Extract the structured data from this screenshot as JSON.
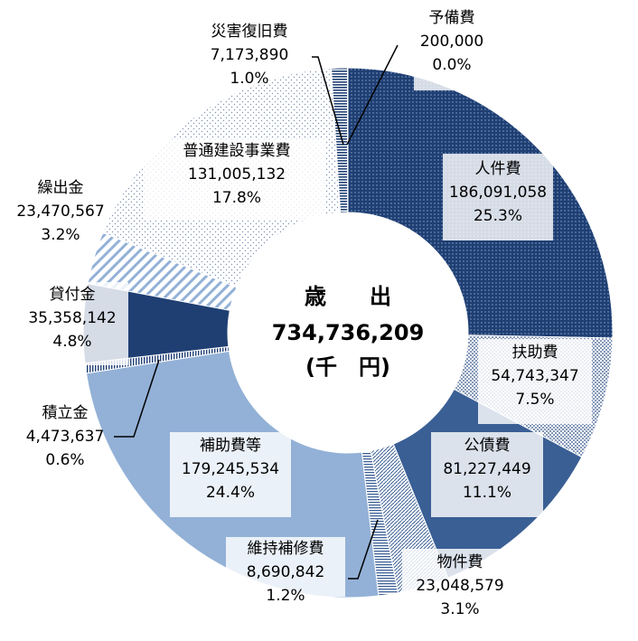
{
  "chart_data": {
    "type": "pie",
    "center": {
      "line1": "歳　　出",
      "line2": "734,736,209",
      "line3": "(千　円)"
    },
    "slices": [
      {
        "name": "人件費",
        "value": 186091058,
        "amount_label": "186,091,058",
        "percent_label": "25.3%",
        "color": "#1f3f73",
        "pattern": "dots-light"
      },
      {
        "name": "扶助費",
        "value": 54743347,
        "amount_label": "54,743,347",
        "percent_label": "7.5%",
        "color": "#ffffff",
        "pattern": "dots-dark"
      },
      {
        "name": "公債費",
        "value": 81227449,
        "amount_label": "81,227,449",
        "percent_label": "11.1%",
        "color": "#3a5f95",
        "pattern": "none"
      },
      {
        "name": "物件費",
        "value": 23048579,
        "amount_label": "23,048,579",
        "percent_label": "3.1%",
        "color": "#ffffff",
        "pattern": "diag-fine"
      },
      {
        "name": "維持補修費",
        "value": 8690842,
        "amount_label": "8,690,842",
        "percent_label": "1.2%",
        "color": "#ffffff",
        "pattern": "hstripe"
      },
      {
        "name": "補助費等",
        "value": 179245534,
        "amount_label": "179,245,534",
        "percent_label": "24.4%",
        "color": "#93b1d7",
        "pattern": "none"
      },
      {
        "name": "積立金",
        "value": 4473637,
        "amount_label": "4,473,637",
        "percent_label": "0.6%",
        "color": "#ffffff",
        "pattern": "vstripe"
      },
      {
        "name": "貸付金",
        "value": 35358142,
        "amount_label": "35,358,142",
        "percent_label": "4.8%",
        "color": "#1f3f73",
        "pattern": "none"
      },
      {
        "name": "繰出金",
        "value": 23470567,
        "amount_label": "23,470,567",
        "percent_label": "3.2%",
        "color": "#ffffff",
        "pattern": "diag-wide"
      },
      {
        "name": "普通建設事業費",
        "value": 131005132,
        "amount_label": "131,005,132",
        "percent_label": "17.8%",
        "color": "#ffffff",
        "pattern": "dots-sparse"
      },
      {
        "name": "災害復旧費",
        "value": 7173890,
        "amount_label": "7,173,890",
        "percent_label": "1.0%",
        "color": "#ffffff",
        "pattern": "hstripe-dark"
      },
      {
        "name": "予備費",
        "value": 200000,
        "amount_label": "200,000",
        "percent_label": "0.0%",
        "color": "#1f3f73",
        "pattern": "none"
      }
    ]
  }
}
